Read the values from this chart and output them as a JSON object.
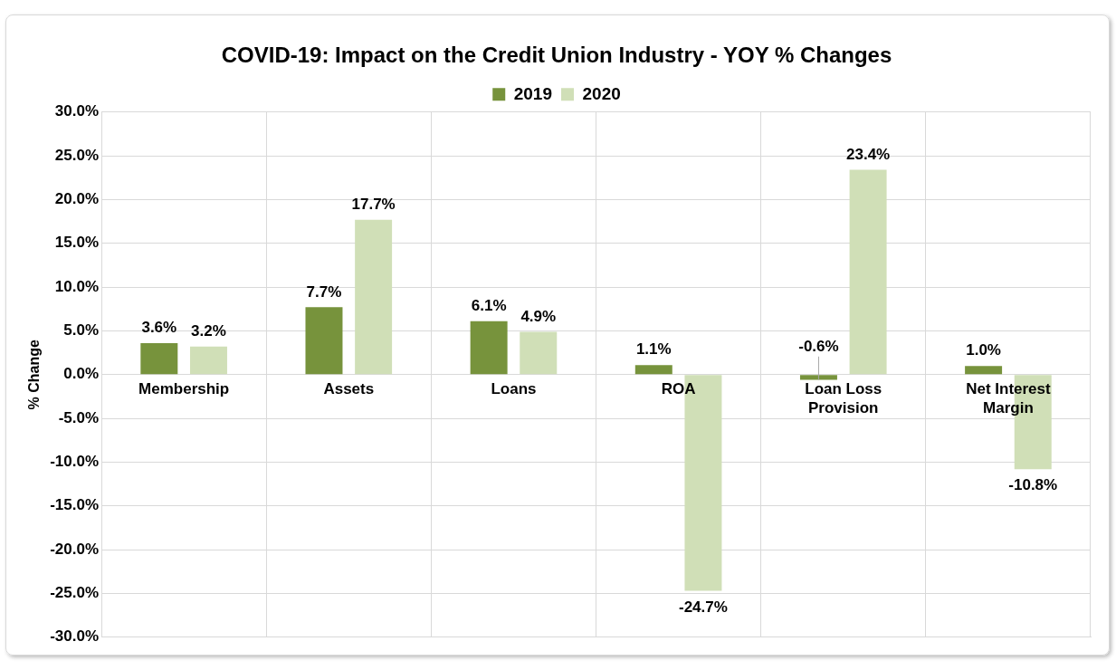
{
  "chart_data": {
    "type": "bar",
    "title": "COVID-19: Impact on the Credit Union Industry - YOY % Changes",
    "ylabel": "% Change",
    "categories": [
      "Membership",
      "Assets",
      "Loans",
      "ROA",
      "Loan Loss Provision",
      "Net Interest Margin"
    ],
    "series": [
      {
        "name": "2019",
        "color": "#77933c",
        "values": [
          3.6,
          7.7,
          6.1,
          1.1,
          -0.6,
          1.0
        ],
        "value_labels": [
          "3.6%",
          "7.7%",
          "6.1%",
          "1.1%",
          "-0.6%",
          "1.0%"
        ]
      },
      {
        "name": "2020",
        "color": "#d0dfb7",
        "values": [
          3.2,
          17.7,
          4.9,
          -24.7,
          23.4,
          -10.8
        ],
        "value_labels": [
          "3.2%",
          "17.7%",
          "4.9%",
          "-24.7%",
          "23.4%",
          "-10.8%"
        ]
      }
    ],
    "ylim": [
      -30,
      30
    ],
    "yticks": [
      {
        "value": -30,
        "label": "-30.0%"
      },
      {
        "value": -25,
        "label": "-25.0%"
      },
      {
        "value": -20,
        "label": "-20.0%"
      },
      {
        "value": -15,
        "label": "-15.0%"
      },
      {
        "value": -10,
        "label": "-10.0%"
      },
      {
        "value": -5,
        "label": "-5.0%"
      },
      {
        "value": 0,
        "label": "0.0%"
      },
      {
        "value": 5,
        "label": "5.0%"
      },
      {
        "value": 10,
        "label": "10.0%"
      },
      {
        "value": 15,
        "label": "15.0%"
      },
      {
        "value": 20,
        "label": "20.0%"
      },
      {
        "value": 25,
        "label": "25.0%"
      },
      {
        "value": 30,
        "label": "30.0%"
      }
    ],
    "grid": true,
    "legend": "top"
  }
}
